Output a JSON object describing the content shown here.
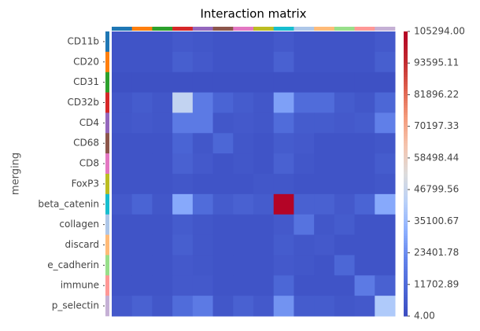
{
  "chart_data": {
    "type": "heatmap",
    "title": "Interaction matrix",
    "y_label": "merging",
    "categories": [
      "CD11b",
      "CD20",
      "CD31",
      "CD32b",
      "CD4",
      "CD68",
      "CD8",
      "FoxP3",
      "beta_catenin",
      "collagen",
      "discard",
      "e_cadherin",
      "immune",
      "p_selectin"
    ],
    "category_colors": [
      "#1f77b4",
      "#ff7f0e",
      "#2ca02c",
      "#d62728",
      "#9467bd",
      "#8c564b",
      "#e377c2",
      "#bcbd22",
      "#17becf",
      "#aec7e8",
      "#ffbb78",
      "#98df8a",
      "#ff9896",
      "#c5b0d5"
    ],
    "values": [
      [
        3000,
        3000,
        3000,
        5000,
        4000,
        3000,
        3000,
        3000,
        5000,
        3000,
        3000,
        3000,
        3000,
        5000
      ],
      [
        3000,
        3000,
        3000,
        7000,
        5000,
        3000,
        3000,
        3000,
        8000,
        3000,
        3000,
        3000,
        3000,
        7000
      ],
      [
        2000,
        2000,
        2000,
        2000,
        2000,
        2000,
        2000,
        2000,
        2000,
        2000,
        2000,
        2000,
        2000,
        2000
      ],
      [
        4000,
        6000,
        4000,
        45000,
        18000,
        9000,
        6000,
        4000,
        28000,
        12000,
        12000,
        6000,
        4000,
        10000
      ],
      [
        4000,
        5000,
        4000,
        18000,
        18000,
        4000,
        5000,
        4000,
        12000,
        6000,
        6000,
        5000,
        6000,
        20000
      ],
      [
        3000,
        3000,
        3000,
        9000,
        4000,
        10000,
        4000,
        3000,
        6000,
        5000,
        3000,
        3000,
        3000,
        4000
      ],
      [
        3000,
        3000,
        3000,
        8000,
        5000,
        3000,
        4000,
        3000,
        8000,
        4000,
        3000,
        3000,
        3000,
        6000
      ],
      [
        3000,
        3000,
        3000,
        4000,
        3000,
        3000,
        3000,
        4000,
        4000,
        3000,
        3000,
        3000,
        3000,
        4000
      ],
      [
        5000,
        9000,
        4000,
        30000,
        12000,
        6000,
        8000,
        6000,
        105294,
        8000,
        8000,
        5000,
        9000,
        30000
      ],
      [
        3000,
        3000,
        3000,
        6000,
        4000,
        3000,
        3000,
        3000,
        5000,
        15000,
        4000,
        6000,
        3000,
        3000
      ],
      [
        3000,
        3000,
        3000,
        7000,
        4000,
        3000,
        3000,
        3000,
        6000,
        4000,
        5000,
        3000,
        3000,
        3000
      ],
      [
        3000,
        3000,
        3000,
        5000,
        4000,
        3000,
        3000,
        3000,
        5000,
        4000,
        3000,
        10000,
        3000,
        3000
      ],
      [
        3000,
        3000,
        3000,
        5000,
        5000,
        3000,
        3000,
        3000,
        10000,
        3000,
        3000,
        3000,
        18000,
        8000
      ],
      [
        5000,
        8000,
        4000,
        12000,
        18000,
        4000,
        8000,
        5000,
        25000,
        6000,
        6000,
        4000,
        5000,
        40000
      ]
    ],
    "colormap": [
      "#3b4cc0",
      "#4d68d7",
      "#6282ea",
      "#8db0fe",
      "#b8d0f9",
      "#dddcdc",
      "#f5c4ad",
      "#f49a7b",
      "#de604d",
      "#c0282f",
      "#b40426"
    ],
    "zlim": [
      4,
      105294
    ],
    "zticks": [
      {
        "value": 4,
        "label": "4.00"
      },
      {
        "value": 11702.89,
        "label": "11702.89"
      },
      {
        "value": 23401.78,
        "label": "23401.78"
      },
      {
        "value": 35100.67,
        "label": "35100.67"
      },
      {
        "value": 46799.56,
        "label": "46799.56"
      },
      {
        "value": 58498.44,
        "label": "58498.44"
      },
      {
        "value": 70197.33,
        "label": "70197.33"
      },
      {
        "value": 81896.22,
        "label": "81896.22"
      },
      {
        "value": 93595.11,
        "label": "93595.11"
      },
      {
        "value": 105294,
        "label": "105294.00"
      }
    ]
  }
}
